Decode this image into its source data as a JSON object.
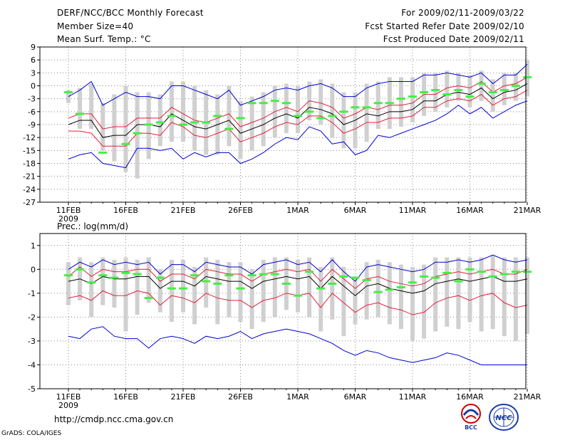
{
  "header": {
    "title": "DERF/NCC/BCC Monthly Forecast",
    "member_size": "Member Size=40",
    "variable": "Mean Surf. Temp.: °C",
    "period": "For 2009/02/11-2009/03/22",
    "start_refer": "Fcst Started Refer Date 2009/02/10",
    "produced": "Fcst Produced Date 2009/02/11"
  },
  "footer": {
    "url": "http://cmdp.ncc.cma.gov.cn",
    "grads": "GrADS: COLA/IGES"
  },
  "logos": {
    "bcc": "BCC",
    "ncc": "NCC"
  },
  "colors": {
    "ensemble_mean": "#000000",
    "std_band": "#e0203c",
    "extremes": "#0000d0",
    "observed": "#44ee44",
    "member_range": "#d0d0d0"
  },
  "chart_data": [
    {
      "type": "line",
      "title": "Mean Surf. Temp.: °C",
      "ylim": [
        -27,
        9
      ],
      "yticks": [
        9,
        6,
        3,
        0,
        -3,
        -6,
        -9,
        -12,
        -15,
        -18,
        -21,
        -24,
        -27
      ],
      "x_tick_labels": [
        "11FEB",
        "16FEB",
        "21FEB",
        "26FEB",
        "1MAR",
        "6MAR",
        "11MAR",
        "16MAR",
        "21MAR"
      ],
      "x_start_label": "2009",
      "days": 40,
      "series": [
        {
          "name": "ensemble mean",
          "values": [
            -9,
            -8,
            -8,
            -12,
            -11.5,
            -11.5,
            -9,
            -9,
            -9.5,
            -6.5,
            -8,
            -9.5,
            -10,
            -9,
            -8,
            -11,
            -10,
            -9,
            -7.5,
            -6.5,
            -7.5,
            -5,
            -5.5,
            -6.5,
            -9,
            -8,
            -6.5,
            -7,
            -6,
            -6,
            -5.5,
            -3.5,
            -3.5,
            -2,
            -1.5,
            -2,
            -0.5,
            -3,
            -1.5,
            -1,
            0.5
          ]
        },
        {
          "name": "upper std",
          "values": [
            -7.5,
            -6.5,
            -6.5,
            -10,
            -9.5,
            -9.5,
            -7.5,
            -7.5,
            -7.5,
            -5,
            -6.5,
            -8,
            -8.5,
            -7.5,
            -6.5,
            -9.5,
            -8.5,
            -7.5,
            -6,
            -5,
            -6,
            -3.5,
            -4,
            -5,
            -7.5,
            -6.5,
            -5,
            -5.5,
            -4.5,
            -4.5,
            -4,
            -2,
            -2,
            -0.5,
            0,
            -0.5,
            1,
            -1.5,
            0,
            0.5,
            2
          ]
        },
        {
          "name": "lower std",
          "values": [
            -10.5,
            -10.5,
            -11,
            -14,
            -14,
            -14,
            -11,
            -11,
            -11.5,
            -8.5,
            -9.5,
            -11.5,
            -12,
            -11,
            -10,
            -13,
            -12,
            -11,
            -9.5,
            -8.5,
            -9,
            -7,
            -7,
            -8.5,
            -11,
            -10,
            -8.5,
            -8.5,
            -7.5,
            -7.5,
            -7,
            -5,
            -5,
            -3.5,
            -3,
            -3.5,
            -2,
            -4.5,
            -3,
            -2.5,
            -1
          ]
        },
        {
          "name": "max",
          "values": [
            -2.5,
            -1,
            1,
            -4.5,
            -3,
            -1.5,
            -2.5,
            -2.5,
            -3,
            0,
            0,
            -1,
            -2,
            -3,
            -1,
            -4.5,
            -3.5,
            -2.5,
            -1,
            -0.5,
            -1,
            0,
            0.5,
            -0.5,
            -2.5,
            -2.5,
            -0.5,
            0.5,
            1,
            1,
            1,
            2.5,
            2.5,
            3,
            2.5,
            2,
            3,
            0.5,
            2.5,
            2.5,
            5
          ]
        },
        {
          "name": "min",
          "values": [
            -17,
            -16,
            -15.5,
            -18,
            -18.5,
            -19,
            -14.5,
            -14.5,
            -15,
            -14.5,
            -17,
            -15.5,
            -16.5,
            -15.5,
            -15.5,
            -18,
            -17,
            -15.5,
            -13.5,
            -12,
            -12.5,
            -9.5,
            -10.5,
            -13.5,
            -13,
            -16,
            -15,
            -11.5,
            -12,
            -11,
            -10,
            -9,
            -8,
            -6.5,
            -4.5,
            -6.5,
            -5,
            -7.5,
            -6,
            -4.5,
            -3.5
          ]
        },
        {
          "name": "range top",
          "values": [
            -1,
            -0.5,
            0.5,
            -4,
            -2,
            0,
            -1.5,
            -1.5,
            -2,
            1,
            1,
            0,
            -1,
            -2,
            0,
            -3.5,
            -2.5,
            -1.5,
            0,
            0.5,
            0,
            1,
            1.5,
            0.5,
            -1.5,
            -1.5,
            0.5,
            1,
            2,
            2,
            2,
            3,
            3,
            3.5,
            3,
            2.5,
            3.5,
            1.5,
            3,
            3,
            6
          ]
        },
        {
          "name": "range bottom",
          "values": [
            -4,
            -10,
            -10,
            -15,
            -17.5,
            -20,
            -21.5,
            -17,
            -14,
            -13,
            -13,
            -15,
            -16,
            -16,
            -14,
            -17,
            -15,
            -14,
            -12,
            -11,
            -11,
            -8,
            -9,
            -12,
            -14.5,
            -14.5,
            -13,
            -10,
            -10,
            -9.5,
            -8.5,
            -7,
            -6,
            -5,
            -3.5,
            -5,
            -3.5,
            -6,
            -4.5,
            -3.5,
            -2.5
          ]
        },
        {
          "name": "observed",
          "values": [
            -1.5,
            -6.5,
            null,
            -15.5,
            null,
            -13.5,
            -11,
            -9,
            -8.5,
            -7,
            -9,
            -8.5,
            -8.5,
            -7,
            -10,
            -7.5,
            -4,
            -4,
            -3.5,
            -4,
            -7,
            -6,
            -7.5,
            -7,
            -6,
            -5,
            -5,
            -4,
            -4,
            -3,
            -2.5,
            -1.5,
            -1,
            -2,
            -1,
            -2.5,
            0.5,
            -1.5,
            -1,
            0,
            2
          ]
        }
      ]
    },
    {
      "type": "line",
      "title": "Prec.: log(mm/d)",
      "ylim": [
        -5,
        1.5
      ],
      "yticks": [
        1,
        0,
        -1,
        -2,
        -3,
        -4,
        -5
      ],
      "x_tick_labels": [
        "11FEB",
        "16FEB",
        "21FEB",
        "26FEB",
        "1MAR",
        "6MAR",
        "11MAR",
        "16MAR",
        "21MAR"
      ],
      "x_start_label": "2009",
      "days": 40,
      "series": [
        {
          "name": "ensemble mean",
          "values": [
            -0.5,
            -0.4,
            -0.6,
            -0.3,
            -0.4,
            -0.4,
            -0.3,
            -0.3,
            -0.8,
            -0.5,
            -0.5,
            -0.7,
            -0.3,
            -0.4,
            -0.5,
            -0.5,
            -0.8,
            -0.5,
            -0.4,
            -0.3,
            -0.4,
            -0.3,
            -0.8,
            -0.3,
            -0.7,
            -1.1,
            -0.7,
            -0.6,
            -0.8,
            -0.9,
            -1,
            -0.9,
            -0.6,
            -0.5,
            -0.4,
            -0.5,
            -0.4,
            -0.3,
            -0.5,
            -0.5,
            -0.4
          ]
        },
        {
          "name": "upper std",
          "values": [
            -0.3,
            0.1,
            -0.3,
            0,
            -0.1,
            -0.1,
            0,
            0,
            -0.5,
            -0.2,
            -0.2,
            -0.4,
            0,
            -0.1,
            -0.2,
            -0.2,
            -0.5,
            -0.2,
            -0.1,
            0,
            -0.1,
            0,
            -0.5,
            0,
            -0.4,
            -0.8,
            -0.4,
            -0.3,
            -0.5,
            -0.6,
            -0.7,
            -0.6,
            -0.3,
            -0.2,
            -0.1,
            -0.2,
            -0.1,
            0,
            -0.2,
            -0.2,
            0
          ]
        },
        {
          "name": "lower std",
          "values": [
            -1.2,
            -1.1,
            -1.3,
            -0.9,
            -1.1,
            -1.1,
            -0.9,
            -1,
            -1.5,
            -1.1,
            -1.2,
            -1.4,
            -1,
            -1.2,
            -1.3,
            -1.3,
            -1.6,
            -1.3,
            -1.2,
            -1,
            -1.1,
            -1,
            -1.6,
            -1,
            -1.4,
            -1.8,
            -1.5,
            -1.4,
            -1.6,
            -1.7,
            -1.9,
            -1.8,
            -1.4,
            -1.2,
            -1.1,
            -1.3,
            -1.1,
            -1,
            -1.4,
            -1.6,
            -1.5
          ]
        },
        {
          "name": "max",
          "values": [
            0,
            0.3,
            0.1,
            0.4,
            0.2,
            0.3,
            0.2,
            0.3,
            -0.2,
            0.2,
            0.2,
            -0.1,
            0.3,
            0.2,
            0.1,
            0.1,
            -0.2,
            0.2,
            0.3,
            0.4,
            0.2,
            0.3,
            -0.1,
            0.4,
            -0.1,
            -0.5,
            0.1,
            0.2,
            0.1,
            0,
            -0.1,
            0,
            0.3,
            0.3,
            0.4,
            0.3,
            0.4,
            0.6,
            0.4,
            0.3,
            0.4
          ]
        },
        {
          "name": "min",
          "values": [
            -2.8,
            -2.9,
            -2.5,
            -2.4,
            -2.8,
            -2.9,
            -2.9,
            -3.3,
            -2.9,
            -2.8,
            -2.9,
            -3.1,
            -2.8,
            -2.9,
            -2.8,
            -2.6,
            -2.9,
            -2.7,
            -2.6,
            -2.5,
            -2.6,
            -2.7,
            -2.9,
            -3.1,
            -3.4,
            -3.6,
            -3.4,
            -3.5,
            -3.7,
            -3.8,
            -3.9,
            -3.8,
            -3.7,
            -3.5,
            -3.6,
            -3.8,
            -4,
            -4,
            -4,
            -4,
            -4
          ]
        },
        {
          "name": "range top",
          "values": [
            0.3,
            0.5,
            0.3,
            0.5,
            0.4,
            0.5,
            0.4,
            0.5,
            0,
            0.4,
            0.4,
            0.1,
            0.5,
            0.4,
            0.3,
            0.3,
            0,
            0.4,
            0.5,
            0.5,
            0.4,
            0.5,
            0.1,
            0.5,
            0.1,
            -0.3,
            0.3,
            0.4,
            0.3,
            0.2,
            0.1,
            0.2,
            0.5,
            0.5,
            0.5,
            0.5,
            0.5,
            0.6,
            0.5,
            0.5,
            0.5
          ]
        },
        {
          "name": "range bottom",
          "values": [
            -1.5,
            -1.3,
            -2,
            -1.5,
            -1.6,
            -2.6,
            -1.9,
            -1.4,
            -1.8,
            -2.2,
            -1.8,
            -2.3,
            -1.6,
            -2.3,
            -2,
            -2.2,
            -2.5,
            -2.2,
            -2,
            -1.7,
            -1.8,
            -2,
            -2.6,
            -2.1,
            -2.8,
            -2.3,
            -2.1,
            -2,
            -2.3,
            -2.5,
            -3,
            -2.9,
            -2.6,
            -2.4,
            -2.5,
            -2.2,
            -2.6,
            -2.5,
            -2.8,
            -3,
            -2.7
          ]
        },
        {
          "name": "observed",
          "values": [
            -0.25,
            0,
            -0.55,
            -0.25,
            -0.35,
            -0.15,
            -0.2,
            -1.2,
            -0.35,
            -0.8,
            -0.8,
            -0.25,
            -0.5,
            -0.6,
            -0.25,
            -0.8,
            -0.25,
            -0.2,
            -0.2,
            -0.6,
            -1.1,
            -0.1,
            -0.8,
            -0.6,
            -0.3,
            -0.35,
            -0.45,
            -0.95,
            -0.85,
            -0.75,
            -0.55,
            -0.3,
            -0.35,
            -0.15,
            -0.5,
            0,
            -0.1,
            -0.3,
            -0.2,
            -0.1,
            -0.1
          ]
        }
      ]
    }
  ]
}
